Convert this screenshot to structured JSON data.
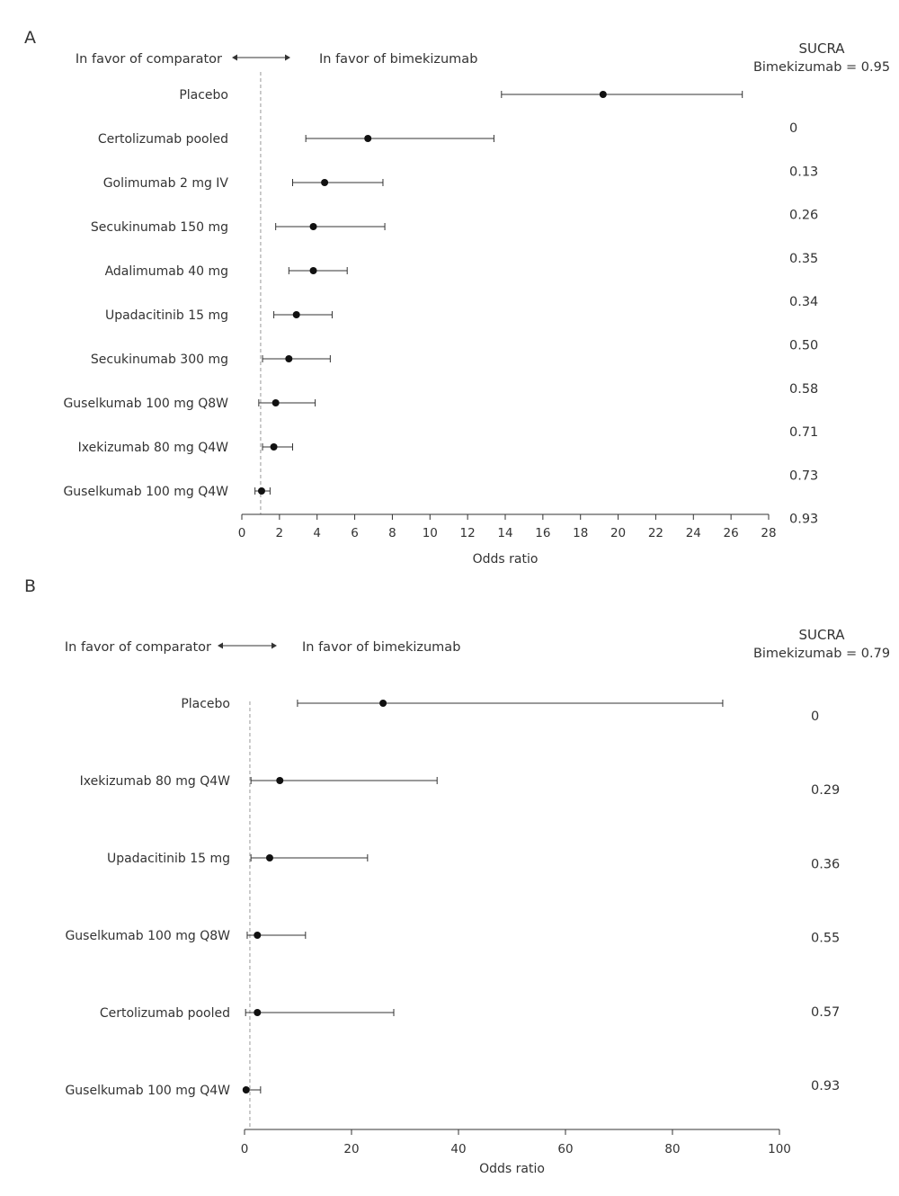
{
  "chart_data": [
    {
      "type": "forest",
      "panel": "A",
      "xlabel": "Odds ratio",
      "xlim": [
        0,
        28
      ],
      "xticks": [
        0,
        2,
        4,
        6,
        8,
        10,
        12,
        14,
        16,
        18,
        20,
        22,
        24,
        26,
        28
      ],
      "reference_line": 1,
      "left_label": "In favor of comparator",
      "right_label": "In favor of bimekizumab",
      "sucra_title": "SUCRA",
      "sucra_subtitle": "Bimekizumab = 0.95",
      "rows": [
        {
          "label": "Placebo",
          "or": 19.2,
          "lo": 13.8,
          "hi": 26.6
        },
        {
          "label": "Certolizumab pooled",
          "or": 6.7,
          "lo": 3.4,
          "hi": 13.4
        },
        {
          "label": "Golimumab 2 mg IV",
          "or": 4.4,
          "lo": 2.7,
          "hi": 7.5
        },
        {
          "label": "Secukinumab 150 mg",
          "or": 3.8,
          "lo": 1.8,
          "hi": 7.6
        },
        {
          "label": "Adalimumab 40 mg",
          "or": 3.8,
          "lo": 2.5,
          "hi": 5.6
        },
        {
          "label": "Upadacitinib 15 mg",
          "or": 2.9,
          "lo": 1.7,
          "hi": 4.8
        },
        {
          "label": "Secukinumab 300 mg",
          "or": 2.5,
          "lo": 1.1,
          "hi": 4.7
        },
        {
          "label": "Guselkumab 100 mg Q8W",
          "or": 1.8,
          "lo": 0.9,
          "hi": 3.9
        },
        {
          "label": "Ixekizumab 80 mg Q4W",
          "or": 1.7,
          "lo": 1.1,
          "hi": 2.7
        },
        {
          "label": "Guselkumab 100 mg Q4W",
          "or": 1.05,
          "lo": 0.7,
          "hi": 1.5
        }
      ],
      "sucra": [
        "0",
        "0.13",
        "0.26",
        "0.35",
        "0.34",
        "0.50",
        "0.58",
        "0.71",
        "0.73",
        "0.93"
      ]
    },
    {
      "type": "forest",
      "panel": "B",
      "xlabel": "Odds ratio",
      "xlim": [
        0,
        100
      ],
      "xticks": [
        0,
        20,
        40,
        60,
        80,
        100
      ],
      "reference_line": 1,
      "left_label": "In favor of comparator",
      "right_label": "In favor of bimekizumab",
      "sucra_title": "SUCRA",
      "sucra_subtitle": "Bimekizumab = 0.79",
      "rows": [
        {
          "label": "Placebo",
          "or": 25.9,
          "lo": 9.9,
          "hi": 89.4
        },
        {
          "label": "Ixekizumab 80 mg Q4W",
          "or": 6.6,
          "lo": 1.2,
          "hi": 36.0
        },
        {
          "label": "Upadacitinib 15 mg",
          "or": 4.7,
          "lo": 1.2,
          "hi": 23.0
        },
        {
          "label": "Guselkumab 100 mg Q8W",
          "or": 2.4,
          "lo": 0.5,
          "hi": 11.4
        },
        {
          "label": "Certolizumab pooled",
          "or": 2.4,
          "lo": 0.2,
          "hi": 27.9
        },
        {
          "label": "Guselkumab 100 mg Q4W",
          "or": 0.3,
          "lo": 0.2,
          "hi": 3.0
        }
      ],
      "sucra": [
        "0",
        "0.29",
        "0.36",
        "0.55",
        "0.57",
        "0.93"
      ]
    }
  ]
}
